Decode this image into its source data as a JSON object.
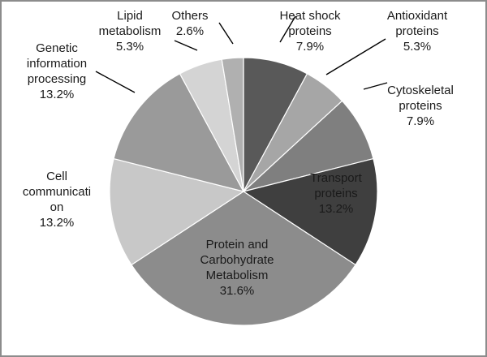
{
  "chart_data": {
    "type": "pie",
    "title": "",
    "slices": [
      {
        "name": "Heat shock proteins",
        "lines": [
          "Heat shock",
          "proteins",
          "7.9%"
        ],
        "value": 7.9,
        "color": "#595959"
      },
      {
        "name": "Antioxidant proteins",
        "lines": [
          "Antioxidant",
          "proteins",
          "5.3%"
        ],
        "value": 5.3,
        "color": "#a6a6a6"
      },
      {
        "name": "Cytoskeletal proteins",
        "lines": [
          "Cytoskeletal",
          "proteins",
          "7.9%"
        ],
        "value": 7.9,
        "color": "#7f7f7f"
      },
      {
        "name": "Transport proteins",
        "lines": [
          "Transport",
          "proteins",
          "13.2%"
        ],
        "value": 13.2,
        "color": "#3f3f3f"
      },
      {
        "name": "Protein and Carbohydrate Metabolism",
        "lines": [
          "Protein and",
          "Carbohydrate",
          "Metabolism",
          "31.6%"
        ],
        "value": 31.6,
        "color": "#8c8c8c"
      },
      {
        "name": "Cell communication",
        "lines": [
          "Cell",
          "communicati",
          "on",
          "13.2%"
        ],
        "value": 13.2,
        "color": "#c8c8c8"
      },
      {
        "name": "Genetic information processing",
        "lines": [
          "Genetic",
          "information",
          "processing",
          "13.2%"
        ],
        "value": 13.2,
        "color": "#9a9a9a"
      },
      {
        "name": "Lipid metabolism",
        "lines": [
          "Lipid",
          "metabolism",
          "5.3%"
        ],
        "value": 5.3,
        "color": "#d4d4d4"
      },
      {
        "name": "Others",
        "lines": [
          "Others",
          "2.6%"
        ],
        "value": 2.6,
        "color": "#b0b0b0"
      }
    ]
  }
}
